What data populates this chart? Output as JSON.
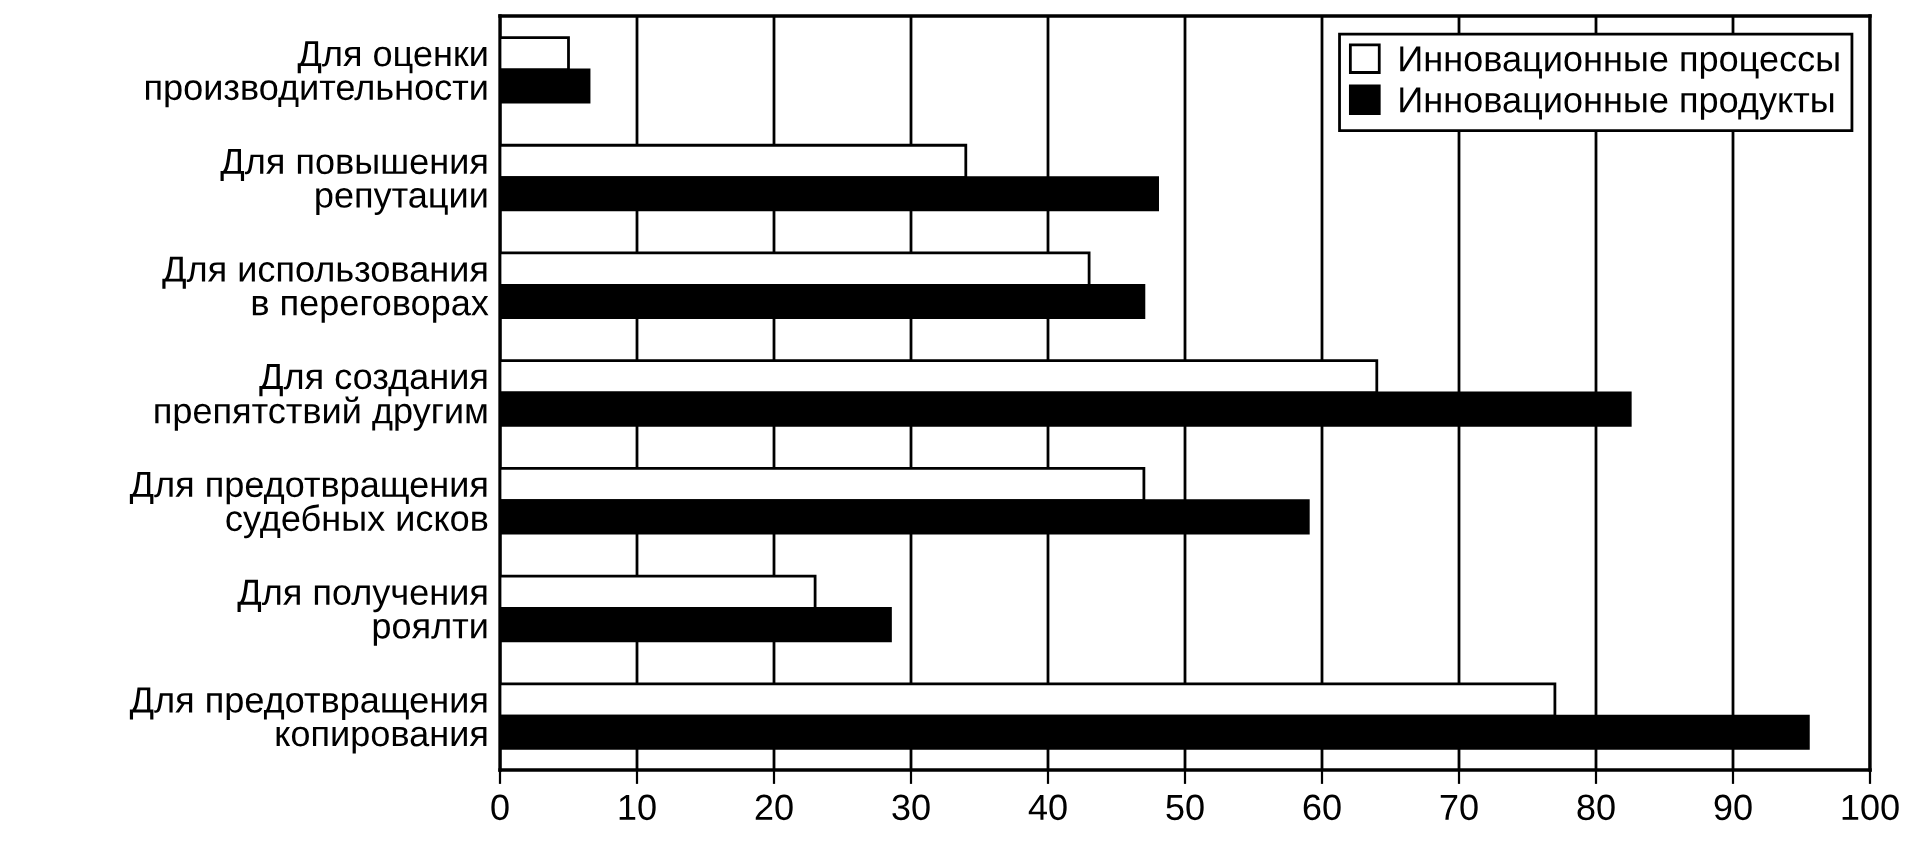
{
  "chart_data": {
    "type": "bar",
    "orientation": "horizontal",
    "categories": [
      "Для оценки\nпроизводительности",
      "Для повышения\nрепутации",
      "Для использования\nв переговорах",
      "Для создания\nпрепятствий другим",
      "Для предотвращения\nсудебных исков",
      "Для получения\nроялти",
      "Для предотвращения\nкопирования"
    ],
    "series": [
      {
        "name": "Инновационные процессы",
        "color": "#ffffff",
        "values": [
          5,
          34,
          43,
          64,
          47,
          23,
          77
        ]
      },
      {
        "name": "Инновационные продукты",
        "color": "#000000",
        "values": [
          6.5,
          48,
          47,
          82.5,
          59,
          28.5,
          95.5
        ]
      }
    ],
    "xlim": [
      0,
      100
    ],
    "xticks": [
      0,
      10,
      20,
      30,
      40,
      50,
      60,
      70,
      80,
      90,
      100
    ],
    "grid": "x",
    "legend": "top right"
  }
}
